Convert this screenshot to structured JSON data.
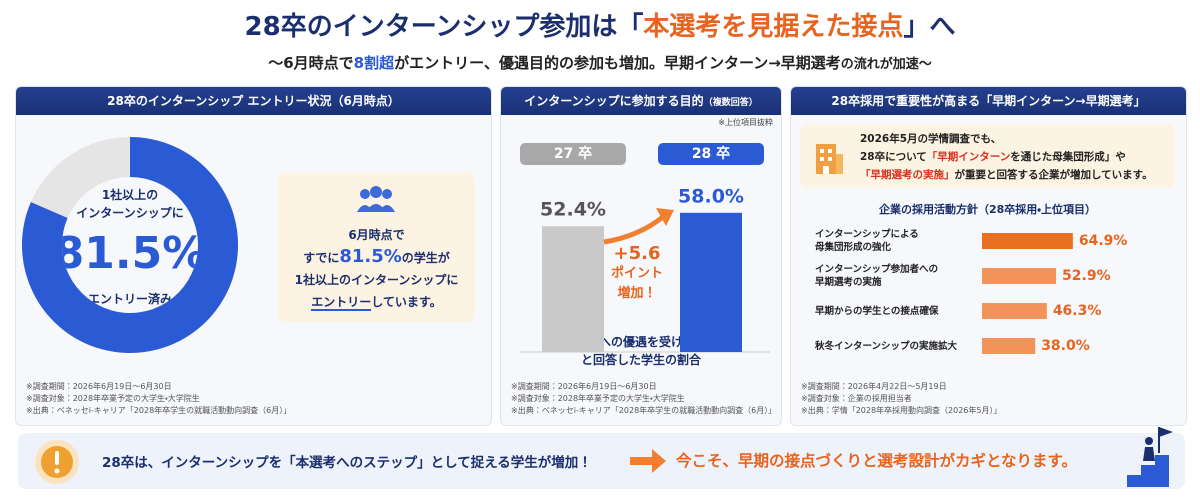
{
  "header": {
    "title": [
      "28卒のインターンシップ参加は「",
      "本選考を見据えた接点",
      "」へ"
    ],
    "subtitle": [
      "〜6月時点で",
      "8割超",
      "がエントリー、優遇目的の参加も増加。早期インターン→早期選考",
      "の流れが加速〜"
    ]
  },
  "panels": [
    {
      "title": "28卒のインターンシップ エントリー状況（6月時点）",
      "center_text": [
        "1社以上の",
        "インターンシップに"
      ],
      "center_caption": "エントリー済み",
      "callout": [
        [
          "6月時点で"
        ],
        [
          "すでに",
          "81.5%",
          "の学生が"
        ],
        [
          "1社以上のインターンシップに"
        ],
        [
          "エントリー",
          "しています。"
        ]
      ],
      "notes": [
        "※調査期間：2026年6月19日〜6月30日",
        "※調査対象：2028年卒業予定の大学生・大学院生",
        "※出典：ベネッセi-キャリア「2028年卒学生の就職活動動向調査（6月）」"
      ]
    },
    {
      "title": "インターンシップに参加する目的",
      "title_note": "（複数回答）",
      "note": "※上位項目抜粋",
      "annotation": [
        "+5.6",
        "ポイント",
        "増加！"
      ],
      "caption": [
        "「本選考への優遇を受けるため」",
        "と回答した学生の割合"
      ],
      "notes": [
        "※調査期間：2026年6月19日〜6月30日",
        "※調査対象：2028年卒業予定の大学生・大学院生",
        "※出典：ベネッセi-キャリア「2028年卒学生の就職活動動向調査（6月）」"
      ]
    },
    {
      "title": "28卒採用で重要性が高まる「早期インターン→早期選考」",
      "info": [
        [
          "2026年5月の学情調査でも、"
        ],
        [
          "28卒について",
          "「早期インターン",
          "を通じた母集団形成」",
          "や"
        ],
        [
          "「早期選考の実施」",
          "が重要と回答する企業が増加しています。"
        ]
      ],
      "notes": [
        "※調査期間：2026年4月22日〜5月19日",
        "※調査対象：企業の採用担当者",
        "※出典：学情「2028年卒採用動向調査（2026年5月）」"
      ]
    }
  ],
  "footer": {
    "message": "28卒は、インターンシップを「本選考へのステップ」として捉える学生が増加！",
    "conclusion": "今こそ、早期の接点づくりと選考設計がカギとなります。"
  },
  "chart_data": [
    {
      "type": "donut",
      "values": [
        81.5
      ],
      "value_labels": [
        "81.5%"
      ],
      "color": "#2a5bd4",
      "track_color": "#e5e5e5"
    },
    {
      "type": "bar",
      "categories": [
        "27 卒",
        "28 卒"
      ],
      "values": [
        52.4,
        58.0
      ],
      "value_labels": [
        "52.4%",
        "58.0%"
      ],
      "colors": [
        "#c9c9c9",
        "#2a5bd4"
      ]
    },
    {
      "type": "hbar",
      "title": "企業の採用活動方針（28卒採用・上位項目）",
      "categories": [
        "インターンシップによる\n母集団形成の強化",
        "インターンシップ参加者への\n早期選考の実施",
        "早期からの学生との接点確保",
        "秋冬インターンシップの実施拡大"
      ],
      "values": [
        64.9,
        52.9,
        46.3,
        38.0
      ],
      "value_labels": [
        "64.9%",
        "52.9%",
        "46.3%",
        "38.0%"
      ],
      "colors": [
        "#e8701e",
        "#f2945a",
        "#f2945a",
        "#f2945a"
      ]
    }
  ]
}
